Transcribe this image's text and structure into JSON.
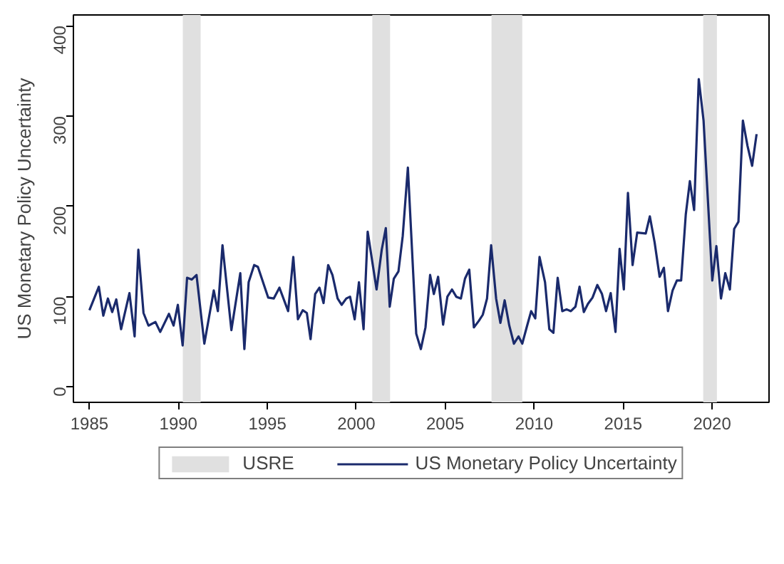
{
  "chart_data": {
    "type": "line",
    "ylabel": "US Monetary Policy Uncertainty",
    "x": [
      1985.0,
      1985.53,
      1985.78,
      1986.04,
      1986.28,
      1986.51,
      1986.78,
      1987.25,
      1987.54,
      1987.75,
      1988.04,
      1988.32,
      1988.71,
      1988.98,
      1989.47,
      1989.73,
      1989.97,
      1990.24,
      1990.49,
      1990.75,
      1991.02,
      1991.46,
      1991.99,
      1992.22,
      1992.48,
      1992.98,
      1993.48,
      1993.71,
      1993.95,
      1994.26,
      1994.47,
      1995.05,
      1995.36,
      1995.68,
      1996.17,
      1996.46,
      1996.72,
      1996.99,
      1997.22,
      1997.43,
      1997.69,
      1997.93,
      1998.16,
      1998.42,
      1998.66,
      1998.95,
      1999.18,
      1999.44,
      1999.65,
      1999.91,
      2000.15,
      2000.41,
      2000.64,
      2001.14,
      2001.43,
      2001.66,
      2001.88,
      2002.11,
      2002.37,
      2002.61,
      2002.9,
      2003.37,
      2003.63,
      2003.89,
      2004.15,
      2004.36,
      2004.6,
      2004.88,
      2005.12,
      2005.38,
      2005.62,
      2005.88,
      2006.11,
      2006.35,
      2006.61,
      2006.88,
      2007.11,
      2007.35,
      2007.58,
      2007.86,
      2008.1,
      2008.34,
      2008.6,
      2008.86,
      2009.12,
      2009.33,
      2009.59,
      2009.83,
      2010.06,
      2010.3,
      2010.61,
      2010.85,
      2011.08,
      2011.32,
      2011.58,
      2011.82,
      2012.06,
      2012.32,
      2012.55,
      2012.79,
      2013.02,
      2013.28,
      2013.55,
      2013.81,
      2014.04,
      2014.3,
      2014.57,
      2014.8,
      2015.04,
      2015.27,
      2015.53,
      2015.79,
      2016.27,
      2016.5,
      2016.77,
      2017.05,
      2017.29,
      2017.52,
      2017.78,
      2018.02,
      2018.26,
      2018.52,
      2018.75,
      2018.99,
      2019.25,
      2019.52,
      2020.01,
      2020.24,
      2020.5,
      2020.74,
      2021.0,
      2021.24,
      2021.48,
      2021.73,
      2021.99,
      2022.25,
      2022.5
    ],
    "series": [
      {
        "name": "US Monetary Policy Uncertainty",
        "color": "#1a2a6c",
        "values": [
          85,
          111,
          79,
          98,
          83,
          97,
          64,
          104,
          56,
          152,
          82,
          68,
          72,
          61,
          81,
          68,
          91,
          46,
          121,
          119,
          124,
          48,
          107,
          84,
          157,
          63,
          126,
          42,
          116,
          135,
          133,
          99,
          98,
          110,
          84,
          144,
          75,
          85,
          82,
          53,
          103,
          110,
          93,
          135,
          124,
          98,
          91,
          98,
          100,
          75,
          116,
          64,
          172,
          108,
          152,
          176,
          89,
          120,
          128,
          167,
          243,
          59,
          42,
          66,
          124,
          103,
          122,
          69,
          100,
          108,
          100,
          98,
          120,
          130,
          66,
          73,
          80,
          98,
          157,
          98,
          71,
          96,
          68,
          48,
          56,
          48,
          67,
          84,
          76,
          144,
          116,
          64,
          60,
          121,
          84,
          86,
          84,
          89,
          111,
          83,
          92,
          99,
          113,
          103,
          84,
          104,
          61,
          153,
          108,
          215,
          135,
          171,
          170,
          189,
          160,
          122,
          132,
          84,
          107,
          118,
          118,
          191,
          228,
          196,
          341,
          295,
          118,
          156,
          98,
          126,
          108,
          175,
          183,
          295,
          267,
          245,
          280
        ]
      }
    ],
    "bands": [
      {
        "axis": "x",
        "from": 1990.25,
        "to": 1991.25,
        "label": "USRE",
        "color": "#e0e0e0"
      },
      {
        "axis": "x",
        "from": 2000.9,
        "to": 2001.9,
        "color": "#e0e0e0"
      },
      {
        "axis": "x",
        "from": 2007.6,
        "to": 2009.33,
        "color": "#e0e0e0"
      },
      {
        "axis": "x",
        "from": 2019.5,
        "to": 2020.27,
        "color": "#e0e0e0"
      }
    ],
    "xlim": [
      1984.1,
      2023.2
    ],
    "ylim": [
      -17,
      412
    ],
    "xticks": [
      1985,
      1990,
      1995,
      2000,
      2005,
      2010,
      2015,
      2020
    ],
    "yticks": [
      0,
      100,
      200,
      300,
      400
    ],
    "grid": false,
    "legend": "bottom",
    "marker": "none",
    "line_style": "solid"
  }
}
